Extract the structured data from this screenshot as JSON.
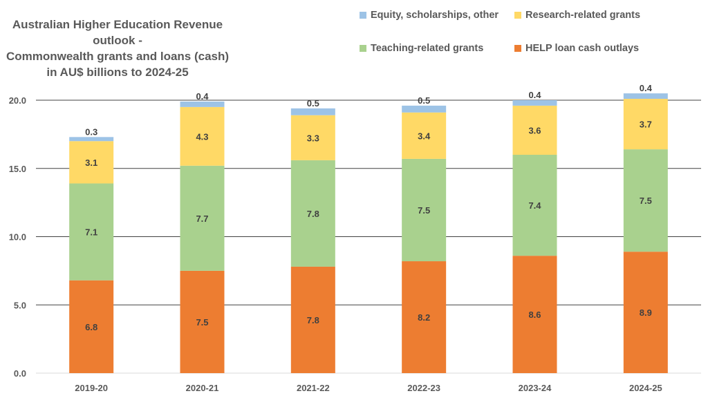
{
  "chart_data": {
    "type": "bar",
    "stacked": true,
    "title": "Australian Higher Education Revenue outlook - Commonwealth grants and loans (cash) in AU$ billions to 2024-25",
    "title_lines": [
      "Australian Higher Education Revenue outlook -",
      "Commonwealth grants and loans (cash)",
      "in AU$ billions to 2024-25"
    ],
    "xlabel": "",
    "ylabel": "",
    "ylim": [
      0,
      20
    ],
    "yticks": [
      "0.0",
      "5.0",
      "10.0",
      "15.0",
      "20.0"
    ],
    "ytick_values": [
      0,
      5,
      10,
      15,
      20
    ],
    "grid": true,
    "legend_position": "top-right",
    "categories": [
      "2019-20",
      "2020-21",
      "2021-22",
      "2022-23",
      "2023-24",
      "2024-25"
    ],
    "series": [
      {
        "name": "HELP loan cash outlays",
        "color": "#ed7d31",
        "values": [
          6.8,
          7.5,
          7.8,
          8.2,
          8.6,
          8.9
        ]
      },
      {
        "name": "Teaching-related grants",
        "color": "#a9d18e",
        "values": [
          7.1,
          7.7,
          7.8,
          7.5,
          7.4,
          7.5
        ]
      },
      {
        "name": "Research-related grants",
        "color": "#ffd966",
        "values": [
          3.1,
          4.3,
          3.3,
          3.4,
          3.6,
          3.7
        ]
      },
      {
        "name": "Equity, scholarships, other",
        "color": "#9dc3e6",
        "values": [
          0.3,
          0.4,
          0.5,
          0.5,
          0.4,
          0.4
        ]
      }
    ],
    "legend_order": [
      {
        "name": "Equity, scholarships, other",
        "color": "#9dc3e6"
      },
      {
        "name": "Research-related grants",
        "color": "#ffd966"
      },
      {
        "name": "Teaching-related grants",
        "color": "#a9d18e"
      },
      {
        "name": "HELP loan cash outlays",
        "color": "#ed7d31"
      }
    ]
  }
}
